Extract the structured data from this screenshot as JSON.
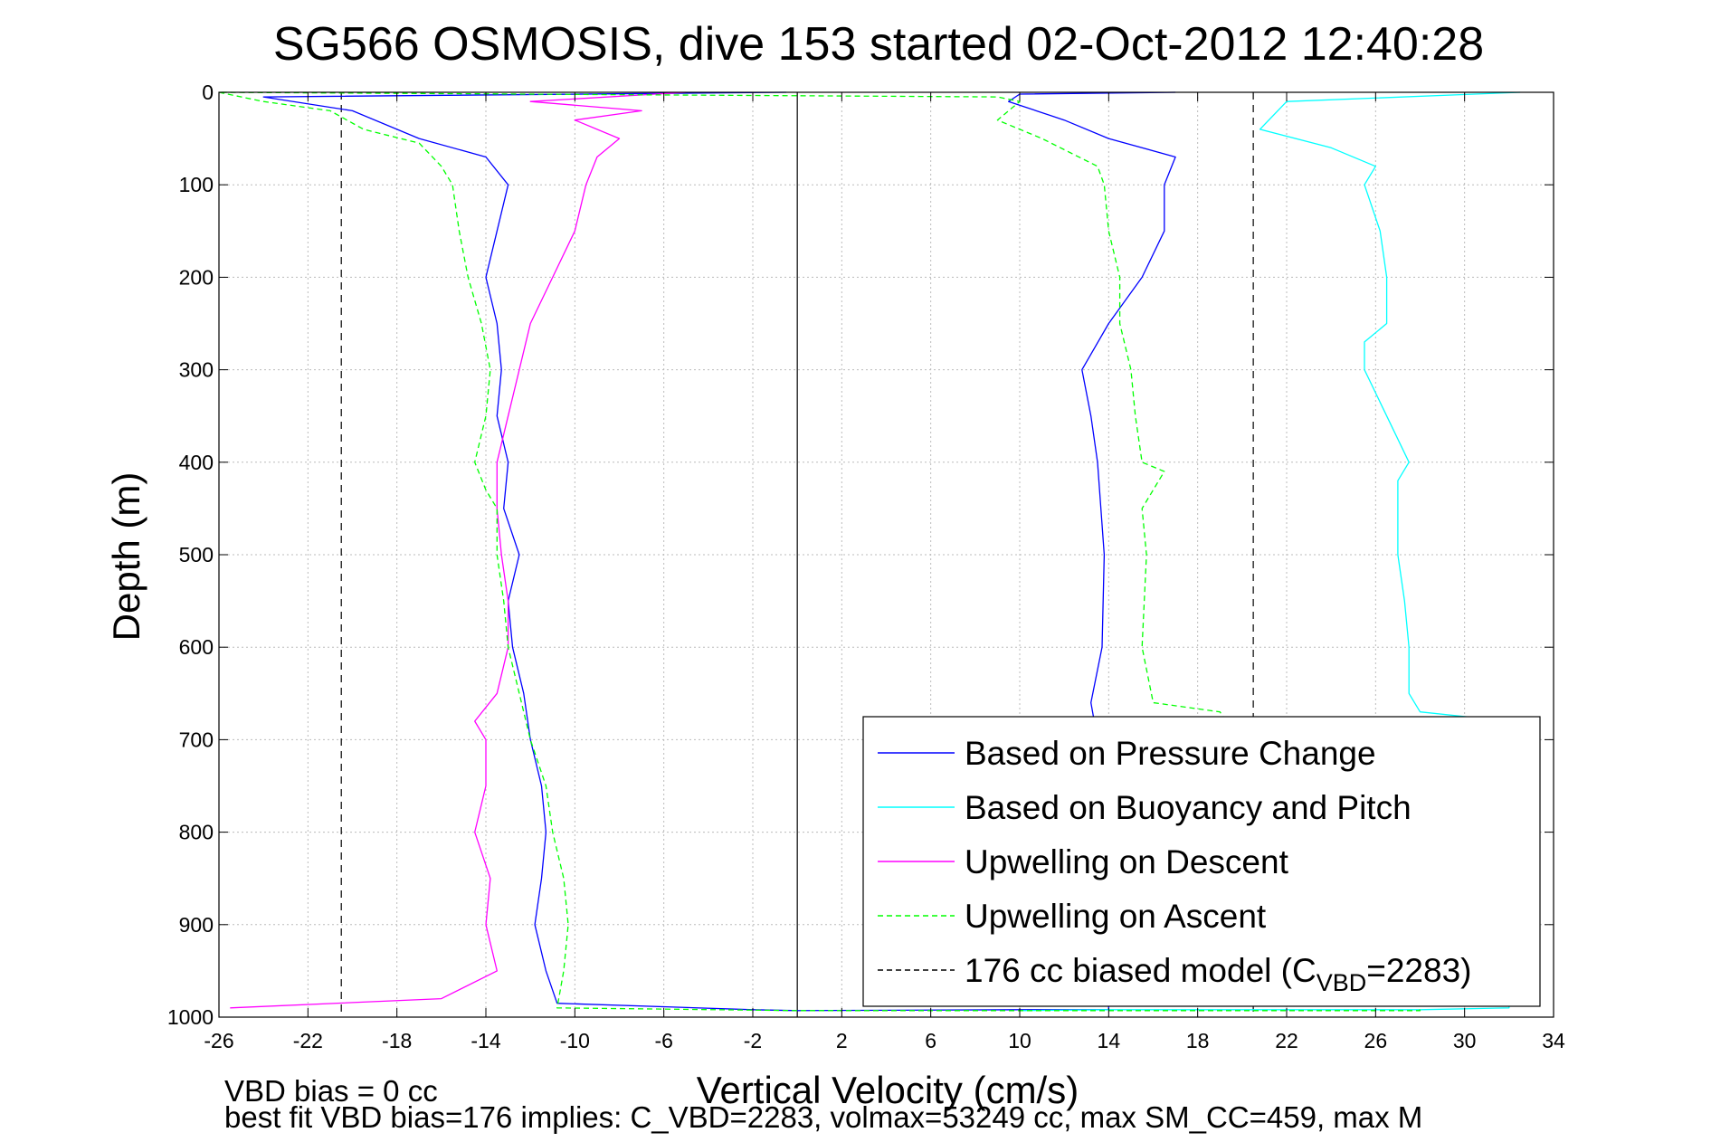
{
  "chart_data": {
    "type": "line",
    "title": "SG566 OSMOSIS, dive 153 started 02-Oct-2012 12:40:28",
    "xlabel": "Vertical Velocity (cm/s)",
    "ylabel": "Depth (m)",
    "xlim": [
      -26,
      34
    ],
    "ylim": [
      0,
      1000
    ],
    "y_reversed": true,
    "grid": true,
    "legend_position": "lower-right",
    "xticks": [
      -26,
      -22,
      -18,
      -14,
      -10,
      -6,
      -2,
      2,
      6,
      10,
      14,
      18,
      22,
      26,
      30,
      34
    ],
    "yticks": [
      0,
      100,
      200,
      300,
      400,
      500,
      600,
      700,
      800,
      900,
      1000
    ],
    "vlines": [
      {
        "x": -20.5,
        "style": "dashed",
        "color": "#000000"
      },
      {
        "x": 0,
        "style": "solid",
        "color": "#000000"
      },
      {
        "x": 20.5,
        "style": "dashed",
        "color": "#000000"
      }
    ],
    "legend": [
      {
        "label": "Based on Pressure Change",
        "color": "#0000ff",
        "style": "solid"
      },
      {
        "label": "Based on Buoyancy and Pitch",
        "color": "#00ffff",
        "style": "solid"
      },
      {
        "label": "Upwelling on Descent",
        "color": "#ff00ff",
        "style": "solid"
      },
      {
        "label": "Upwelling on Ascent",
        "color": "#00ff00",
        "style": "dashed"
      },
      {
        "label_main": "176 cc biased model (C",
        "label_sub": "VBD",
        "label_tail": "=2283)",
        "color": "#000000",
        "style": "dashed"
      }
    ],
    "series": [
      {
        "name": "Based on Pressure Change",
        "color": "#0000ff",
        "dash": "",
        "points": [
          [
            -0.5,
            0
          ],
          [
            -24,
            5
          ],
          [
            -20,
            20
          ],
          [
            -17,
            50
          ],
          [
            -14,
            70
          ],
          [
            -13,
            100
          ],
          [
            -13.5,
            150
          ],
          [
            -14,
            200
          ],
          [
            -13.5,
            250
          ],
          [
            -13.3,
            300
          ],
          [
            -13.5,
            350
          ],
          [
            -13,
            400
          ],
          [
            -13.2,
            450
          ],
          [
            -12.5,
            500
          ],
          [
            -13,
            550
          ],
          [
            -12.8,
            600
          ],
          [
            -12.3,
            650
          ],
          [
            -12,
            700
          ],
          [
            -11.5,
            750
          ],
          [
            -11.3,
            800
          ],
          [
            -11.5,
            850
          ],
          [
            -11.8,
            900
          ],
          [
            -11.3,
            950
          ],
          [
            -10.8,
            985
          ],
          [
            -2,
            992
          ],
          [
            0,
            993
          ],
          [
            10,
            992
          ],
          [
            14,
            992
          ],
          [
            14,
            980
          ],
          [
            13.5,
            900
          ],
          [
            13.5,
            850
          ],
          [
            13.5,
            800
          ],
          [
            13.5,
            700
          ],
          [
            13.2,
            660
          ],
          [
            13.7,
            600
          ],
          [
            13.8,
            500
          ],
          [
            13.5,
            400
          ],
          [
            13.2,
            350
          ],
          [
            12.8,
            300
          ],
          [
            14,
            250
          ],
          [
            15.5,
            200
          ],
          [
            16.5,
            150
          ],
          [
            16.5,
            100
          ],
          [
            17,
            70
          ],
          [
            14,
            50
          ],
          [
            12,
            30
          ],
          [
            9.5,
            10
          ],
          [
            10,
            2
          ],
          [
            17,
            0
          ]
        ]
      },
      {
        "name": "Based on Buoyancy and Pitch",
        "color": "#00ffff",
        "dash": "",
        "points": [
          [
            32.5,
            0
          ],
          [
            22,
            10
          ],
          [
            20.8,
            40
          ],
          [
            24,
            60
          ],
          [
            26,
            80
          ],
          [
            25.5,
            100
          ],
          [
            26.2,
            150
          ],
          [
            26.5,
            200
          ],
          [
            26.5,
            250
          ],
          [
            25.5,
            270
          ],
          [
            25.5,
            300
          ],
          [
            26.5,
            350
          ],
          [
            27.5,
            400
          ],
          [
            27,
            420
          ],
          [
            27,
            500
          ],
          [
            27.3,
            550
          ],
          [
            27.5,
            600
          ],
          [
            27.5,
            650
          ],
          [
            28,
            670
          ],
          [
            32,
            680
          ],
          [
            32,
            990
          ],
          [
            28,
            992
          ],
          [
            14,
            992
          ],
          [
            10,
            993
          ]
        ]
      },
      {
        "name": "Upwelling on Descent",
        "color": "#ff00ff",
        "dash": "",
        "points": [
          [
            -5,
            0
          ],
          [
            -12,
            10
          ],
          [
            -7,
            20
          ],
          [
            -10,
            30
          ],
          [
            -8,
            50
          ],
          [
            -9,
            70
          ],
          [
            -9.5,
            100
          ],
          [
            -10,
            150
          ],
          [
            -11,
            200
          ],
          [
            -12,
            250
          ],
          [
            -12.5,
            300
          ],
          [
            -13,
            350
          ],
          [
            -13.5,
            400
          ],
          [
            -13.5,
            450
          ],
          [
            -13.3,
            500
          ],
          [
            -13,
            550
          ],
          [
            -13,
            600
          ],
          [
            -13.5,
            650
          ],
          [
            -14.5,
            680
          ],
          [
            -14,
            700
          ],
          [
            -14,
            750
          ],
          [
            -14.5,
            800
          ],
          [
            -13.8,
            850
          ],
          [
            -14,
            900
          ],
          [
            -13.5,
            950
          ],
          [
            -16,
            980
          ],
          [
            -25.5,
            990
          ]
        ]
      },
      {
        "name": "Upwelling on Ascent",
        "color": "#00ff00",
        "dash": "6,4",
        "points": [
          [
            -26,
            0
          ],
          [
            -24,
            10
          ],
          [
            -21,
            20
          ],
          [
            -19.5,
            40
          ],
          [
            -17,
            55
          ],
          [
            -16,
            80
          ],
          [
            -15.5,
            100
          ],
          [
            -15.2,
            150
          ],
          [
            -14.8,
            200
          ],
          [
            -14.2,
            250
          ],
          [
            -13.8,
            300
          ],
          [
            -14,
            350
          ],
          [
            -14.5,
            400
          ],
          [
            -14,
            430
          ],
          [
            -13.5,
            450
          ],
          [
            -13.5,
            500
          ],
          [
            -13.2,
            550
          ],
          [
            -13,
            600
          ],
          [
            -12.5,
            650
          ],
          [
            -12,
            700
          ],
          [
            -11.3,
            750
          ],
          [
            -11,
            800
          ],
          [
            -10.5,
            850
          ],
          [
            -10.3,
            900
          ],
          [
            -10.5,
            950
          ],
          [
            -10.8,
            990
          ],
          [
            0,
            993
          ],
          [
            28,
            993
          ],
          [
            19,
            670
          ],
          [
            16,
            660
          ],
          [
            15.5,
            600
          ],
          [
            15.7,
            500
          ],
          [
            15.5,
            450
          ],
          [
            16.5,
            410
          ],
          [
            15.5,
            400
          ],
          [
            15.2,
            350
          ],
          [
            15,
            300
          ],
          [
            14.5,
            250
          ],
          [
            14.5,
            200
          ],
          [
            14,
            150
          ],
          [
            13.8,
            100
          ],
          [
            13.5,
            80
          ],
          [
            11,
            50
          ],
          [
            9,
            30
          ],
          [
            10,
            10
          ],
          [
            9,
            5
          ],
          [
            -26,
            0
          ]
        ]
      }
    ]
  },
  "notes": {
    "bias_line": "VBD bias = 0 cc",
    "fit_line": "best fit VBD bias=176 implies: C_VBD=2283, volmax=53249 cc, max SM_CC=459, max M"
  }
}
